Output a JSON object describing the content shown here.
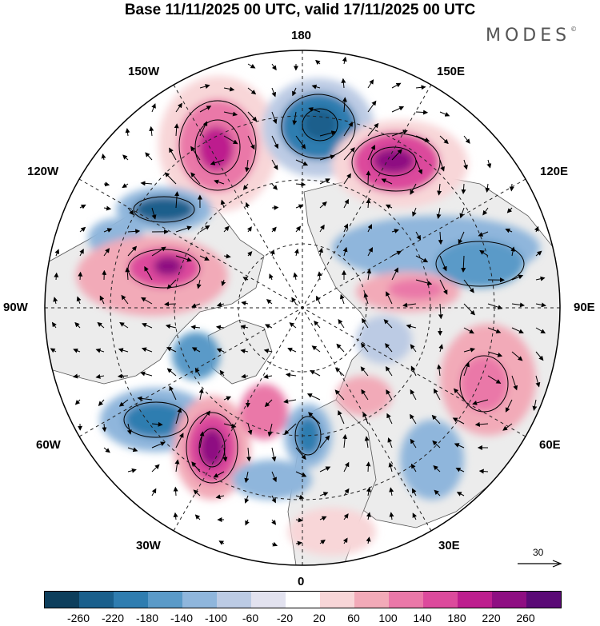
{
  "title": "Base 11/11/2025 00 UTC, valid 17/11/2025 00 UTC",
  "logo": {
    "text": "MODES",
    "mark": "©"
  },
  "longitude_labels": {
    "lon_180": "180",
    "lon_150w": "150W",
    "lon_150e": "150E",
    "lon_120w": "120W",
    "lon_120e": "120E",
    "lon_90w": "90W",
    "lon_90e": "90E",
    "lon_60w": "60W",
    "lon_60e": "60E",
    "lon_30w": "30W",
    "lon_30e": "30E",
    "lon_0": "0"
  },
  "reference_vector": {
    "label": "30"
  },
  "colorbar": {
    "colors": [
      "#0d3e5c",
      "#1a5f8c",
      "#2f7db0",
      "#5a9ac8",
      "#8fb6dc",
      "#bccbe4",
      "#e2e2ef",
      "#ffffff",
      "#f8d6d8",
      "#f2aab8",
      "#ea78a8",
      "#dc4a9c",
      "#bd1e8e",
      "#8e0e82",
      "#5a0a76"
    ],
    "ticks": [
      "-260",
      "-220",
      "-180",
      "-140",
      "-100",
      "-60",
      "-20",
      "20",
      "60",
      "100",
      "140",
      "180",
      "220",
      "260"
    ]
  },
  "map_colors": {
    "land": "#ececec",
    "coast": "#555555",
    "graticule": "#222222"
  }
}
